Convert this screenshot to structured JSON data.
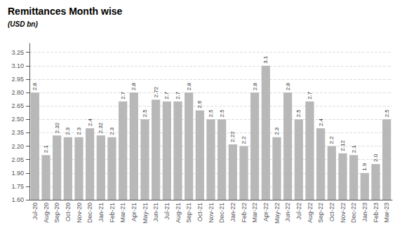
{
  "chart_data": {
    "type": "bar",
    "title": "Remittances Month wise",
    "subtitle": "(USD bn)",
    "categories": [
      "Jul-20",
      "Aug-20",
      "Sep-20",
      "Oct-20",
      "Nov-20",
      "Dec-20",
      "Jan-21",
      "Feb-21",
      "Mar-21",
      "Apr-21",
      "May-21",
      "Jun-21",
      "Jul-21",
      "Aug-21",
      "Sep-21",
      "Oct-21",
      "Nov-21",
      "Dec-21",
      "Jan-22",
      "Feb-22",
      "Mar-22",
      "Apr-22",
      "May-22",
      "Jun-22",
      "Jul-22",
      "Aug-22",
      "Sep-22",
      "Oct-22",
      "Nov-22",
      "Dec-22",
      "Jan-23",
      "Feb-23",
      "Mar-23"
    ],
    "values": [
      2.8,
      2.1,
      2.32,
      2.3,
      2.3,
      2.4,
      2.32,
      2.3,
      2.7,
      2.8,
      2.5,
      2.72,
      2.7,
      2.7,
      2.8,
      2.6,
      2.5,
      2.5,
      2.22,
      2.2,
      2.8,
      3.1,
      2.3,
      2.8,
      2.5,
      2.7,
      2.4,
      2.2,
      2.12,
      2.1,
      1.9,
      2.0,
      2.5
    ],
    "value_labels": [
      "2.8",
      "2.1",
      "2.32",
      "2.3",
      "2.3",
      "2.4",
      "2.32",
      "2.3",
      "2.7",
      "2.8",
      "2.5",
      "2.72",
      "2.7",
      "2.7",
      "2.8",
      "2.6",
      "2.5",
      "2.5",
      "2.22",
      "2.2",
      "2.8",
      "3.1",
      "2.3",
      "2.8",
      "2.5",
      "2.7",
      "2.4",
      "2.2",
      "2.12",
      "2.1",
      "1.9",
      "2.0",
      "2.5"
    ],
    "data_labels": true,
    "color": "#b8b8b8",
    "ylim": [
      1.6,
      3.35
    ],
    "yticks": [
      {
        "value": 1.6,
        "label": "1.60"
      },
      {
        "value": 1.75,
        "label": "1.75"
      },
      {
        "value": 1.9,
        "label": "1.90"
      },
      {
        "value": 2.05,
        "label": "2.05"
      },
      {
        "value": 2.2,
        "label": "2.20"
      },
      {
        "value": 2.35,
        "label": "2.35"
      },
      {
        "value": 2.5,
        "label": "2.50"
      },
      {
        "value": 2.65,
        "label": "2.65"
      },
      {
        "value": 2.8,
        "label": "2.80"
      },
      {
        "value": 2.95,
        "label": "2.95"
      },
      {
        "value": 3.1,
        "label": "3.10"
      },
      {
        "value": 3.25,
        "label": "3.25"
      }
    ],
    "grid": true
  }
}
